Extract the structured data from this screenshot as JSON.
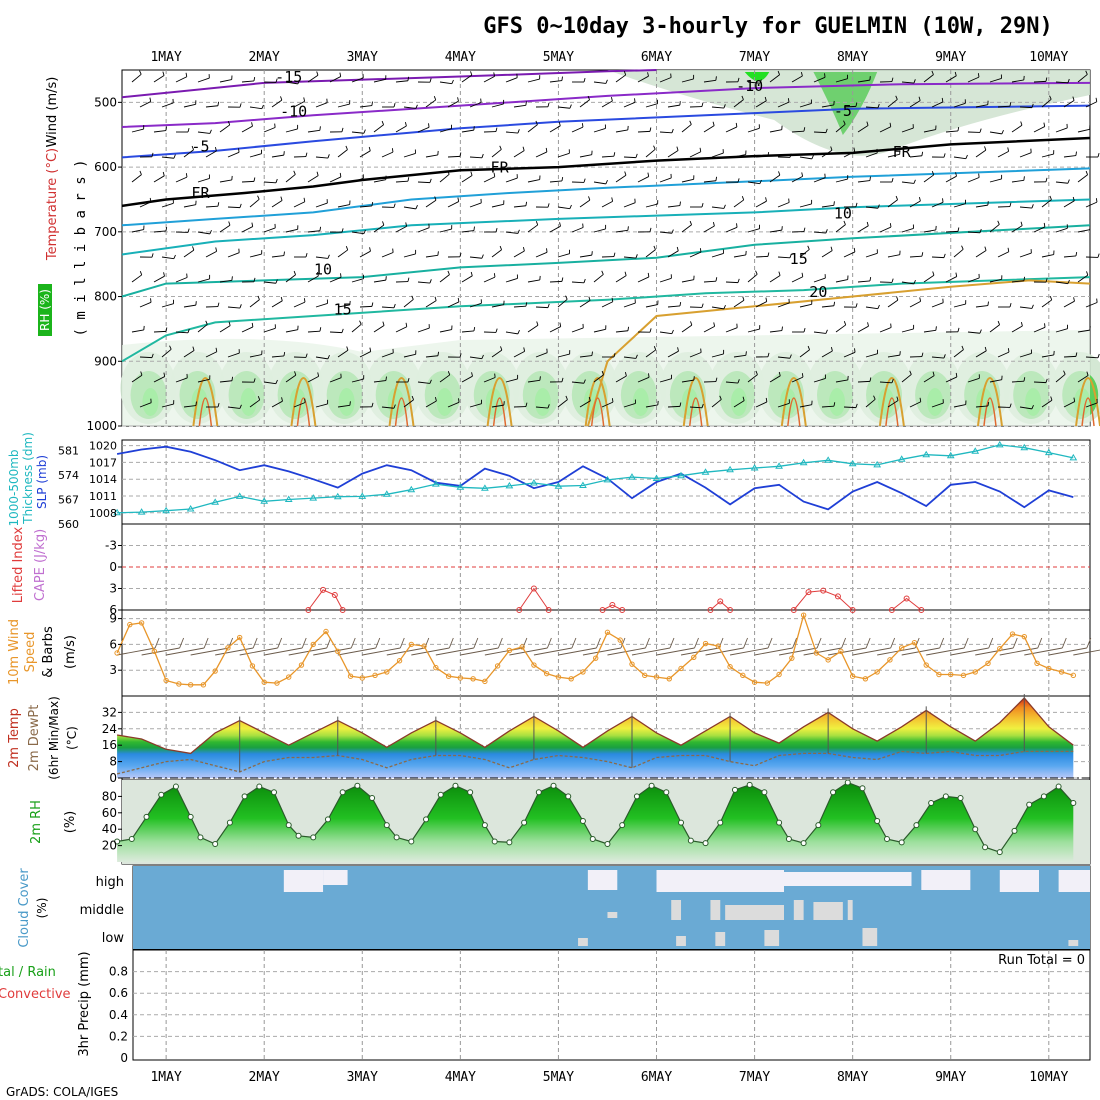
{
  "title": "GFS 0~10day 3-hourly for GUELMIN (10W, 29N)",
  "footer": "GrADS: COLA/IGES",
  "dates": [
    "1MAY",
    "2MAY",
    "3MAY",
    "4MAY",
    "5MAY",
    "6MAY",
    "7MAY",
    "8MAY",
    "9MAY",
    "10MAY"
  ],
  "colors": {
    "slp": "#1f3fd6",
    "thickness": "#20b8c0",
    "lifted": "#e03c3c",
    "wind": "#e8962a",
    "temp_fill": "#f0a030",
    "dewpt": "#8a6a4a",
    "rh_green": "#19b019",
    "cloud": "#6aaad4",
    "cloud_clear": "#f2f0f8",
    "cloud_partial": "#dcdcdc"
  },
  "panels": {
    "profile": {
      "ylabel": "( m i l l i b a r s )",
      "legend_wind": "Wind (m/s)",
      "legend_temp": "Temperature (°C)",
      "legend_rh": "RH (%)",
      "yticks": [
        "500",
        "600",
        "700",
        "800",
        "900",
        "1000"
      ],
      "contour_labels": {
        "t_m15": "-15",
        "t_m10a": "-10",
        "t_m10b": "-10",
        "t_m5a": "-5",
        "t_m5b": "-5",
        "fr1": "FR",
        "fr2": "FR",
        "fr3": "FR",
        "t10a": "10",
        "t10b": "10",
        "t15a": "15",
        "t15b": "15",
        "t20": "20"
      }
    },
    "slp": {
      "label1": "Thickness (dm)",
      "label2": "1000-500mb",
      "label3": "SLP (mb)",
      "yticks_left": [
        "581",
        "574",
        "567",
        "560"
      ],
      "yticks_right": [
        "1020",
        "1017",
        "1014",
        "1011",
        "1008"
      ]
    },
    "stability": {
      "label1": "Lifted Index",
      "label2": "CAPE (J/kg)",
      "yticks": [
        "-3",
        "0",
        "3",
        "6"
      ]
    },
    "wind10m": {
      "label1": "10m Wind",
      "label2": "Speed",
      "label3": "& Barbs",
      "label4": "(m/s)",
      "yticks": [
        "9",
        "6",
        "3"
      ]
    },
    "temp": {
      "label1": "2m Temp",
      "label2": "2m DewPt",
      "label3": "(6hr Min/Max)",
      "label4": "(°C)",
      "yticks": [
        "32",
        "24",
        "16",
        "8",
        "0"
      ]
    },
    "rh": {
      "label1": "2m RH",
      "label2": "(%)",
      "yticks": [
        "80",
        "60",
        "40",
        "20"
      ]
    },
    "cloud": {
      "label1": "Cloud Cover",
      "label2": "(%)",
      "yticks": [
        "high",
        "middle",
        "low"
      ]
    },
    "precip": {
      "label1": "tal / Rain",
      "label2": "Convective",
      "label3": "3hr Precip (mm)",
      "run_total": "Run Total = 0",
      "yticks": [
        "0.8",
        "0.6",
        "0.4",
        "0.2",
        "0"
      ]
    }
  },
  "chart_data": [
    {
      "type": "line",
      "title": "SLP (mb)",
      "x_unit": "day of May",
      "x": [
        0.5,
        0.75,
        1.0,
        1.25,
        1.5,
        1.75,
        2.0,
        2.25,
        2.5,
        2.75,
        3.0,
        3.25,
        3.5,
        3.75,
        4.0,
        4.25,
        4.5,
        4.75,
        5.0,
        5.25,
        5.5,
        5.75,
        6.0,
        6.25,
        6.5,
        6.75,
        7.0,
        7.25,
        7.5,
        7.75,
        8.0,
        8.25,
        8.5,
        8.75,
        9.0,
        9.25,
        9.5,
        9.75,
        10.0,
        10.25
      ],
      "series": [
        {
          "name": "SLP (mb)",
          "values": [
            1018.5,
            1019.3,
            1019.8,
            1018.9,
            1017.4,
            1015.6,
            1016.5,
            1015.4,
            1014.0,
            1012.5,
            1015.0,
            1016.5,
            1015.6,
            1013.4,
            1012.8,
            1015.9,
            1014.6,
            1012.4,
            1013.5,
            1016.3,
            1014.1,
            1010.6,
            1013.5,
            1015.0,
            1012.5,
            1009.5,
            1012.4,
            1013.0,
            1010.0,
            1008.6,
            1011.8,
            1013.5,
            1011.5,
            1009.2,
            1013.0,
            1013.5,
            1011.8,
            1009.0,
            1012.0,
            1010.8
          ]
        },
        {
          "name": "1000-500mb Thickness (dm)",
          "values": [
            563.2,
            563.4,
            563.8,
            564.3,
            566.2,
            567.9,
            566.5,
            567.0,
            567.4,
            567.8,
            567.9,
            568.5,
            569.8,
            571.4,
            570.5,
            570.2,
            570.9,
            571.7,
            570.8,
            571.0,
            572.6,
            573.4,
            573.0,
            573.8,
            574.8,
            575.5,
            576.0,
            576.5,
            577.5,
            578.2,
            577.2,
            576.9,
            578.5,
            579.8,
            579.5,
            580.8,
            582.6,
            581.8,
            580.4,
            578.9
          ]
        }
      ],
      "ylim_slp": [
        1006,
        1021
      ],
      "ylim_thickness": [
        560,
        584
      ]
    },
    {
      "type": "line",
      "title": "Lifted Index / CAPE",
      "ylim": [
        6,
        -6
      ],
      "series": [
        {
          "name": "Lifted Index",
          "x": [
            2.45,
            2.6,
            2.72,
            2.8
          ],
          "values": [
            6.0,
            3.2,
            3.9,
            6.0
          ]
        },
        {
          "name": "Lifted Index",
          "x": [
            4.6,
            4.75,
            4.9
          ],
          "values": [
            6.0,
            3.0,
            6.0
          ]
        },
        {
          "name": "Lifted Index",
          "x": [
            5.45,
            5.55,
            5.65
          ],
          "values": [
            6.0,
            5.3,
            6.0
          ]
        },
        {
          "name": "Lifted Index",
          "x": [
            6.55,
            6.65,
            6.75
          ],
          "values": [
            6.0,
            4.8,
            6.0
          ]
        },
        {
          "name": "Lifted Index",
          "x": [
            7.4,
            7.55,
            7.7,
            7.85,
            8.0
          ],
          "values": [
            6.0,
            3.5,
            3.3,
            4.1,
            6.0
          ]
        },
        {
          "name": "Lifted Index",
          "x": [
            8.4,
            8.55,
            8.7
          ],
          "values": [
            6.0,
            4.4,
            6.0
          ]
        }
      ]
    },
    {
      "type": "line",
      "title": "10m Wind Speed (m/s)",
      "x": [
        0.5,
        0.63,
        0.75,
        0.88,
        1.0,
        1.13,
        1.25,
        1.38,
        1.5,
        1.63,
        1.75,
        1.88,
        2.0,
        2.13,
        2.25,
        2.38,
        2.5,
        2.63,
        2.75,
        2.88,
        3.0,
        3.13,
        3.25,
        3.38,
        3.5,
        3.63,
        3.75,
        3.88,
        4.0,
        4.13,
        4.25,
        4.38,
        4.5,
        4.63,
        4.75,
        4.88,
        5.0,
        5.13,
        5.25,
        5.38,
        5.5,
        5.63,
        5.75,
        5.88,
        6.0,
        6.13,
        6.25,
        6.38,
        6.5,
        6.63,
        6.75,
        6.88,
        7.0,
        7.13,
        7.25,
        7.38,
        7.5,
        7.63,
        7.75,
        7.88,
        8.0,
        8.13,
        8.25,
        8.38,
        8.5,
        8.63,
        8.75,
        8.88,
        9.0,
        9.13,
        9.25,
        9.38,
        9.5,
        9.63,
        9.75,
        9.88,
        10.0,
        10.13,
        10.25
      ],
      "series": [
        {
          "name": "Speed",
          "values": [
            5.0,
            8.3,
            8.5,
            5.2,
            1.8,
            1.4,
            1.3,
            1.3,
            2.9,
            5.6,
            6.8,
            3.5,
            1.6,
            1.5,
            2.2,
            3.6,
            6.0,
            7.5,
            5.2,
            2.3,
            2.1,
            2.4,
            2.8,
            4.1,
            6.0,
            5.8,
            3.3,
            2.3,
            2.1,
            2.0,
            1.7,
            3.5,
            5.3,
            5.7,
            3.6,
            2.6,
            2.2,
            2.0,
            2.8,
            4.4,
            7.4,
            6.5,
            3.7,
            2.4,
            2.2,
            2.0,
            3.2,
            4.5,
            6.1,
            5.8,
            3.4,
            2.4,
            1.6,
            1.5,
            2.5,
            4.4,
            9.4,
            5.0,
            4.2,
            5.2,
            2.3,
            2.0,
            2.8,
            4.2,
            5.6,
            6.2,
            3.6,
            2.5,
            2.5,
            2.4,
            2.8,
            3.8,
            5.5,
            7.2,
            6.9,
            3.8,
            3.2,
            2.8,
            2.4
          ]
        }
      ],
      "ylim": [
        0,
        10
      ]
    },
    {
      "type": "area",
      "title": "2m Temp / 2m DewPt (°C)",
      "x": [
        0.5,
        0.75,
        1.0,
        1.25,
        1.5,
        1.75,
        2.0,
        2.25,
        2.5,
        2.75,
        3.0,
        3.25,
        3.5,
        3.75,
        4.0,
        4.25,
        4.5,
        4.75,
        5.0,
        5.25,
        5.5,
        5.75,
        6.0,
        6.25,
        6.5,
        6.75,
        7.0,
        7.25,
        7.5,
        7.75,
        8.0,
        8.25,
        8.5,
        8.75,
        9.0,
        9.25,
        9.5,
        9.75,
        10.0,
        10.25
      ],
      "series": [
        {
          "name": "2m Temp",
          "values": [
            21,
            19,
            14,
            12,
            22,
            28,
            22,
            16,
            22,
            28,
            22,
            15,
            22,
            28,
            22,
            15,
            23,
            30,
            23,
            15,
            23,
            30,
            22,
            16,
            23,
            30,
            22,
            17,
            25,
            32,
            24,
            18,
            25,
            33,
            25,
            18,
            27,
            39,
            25,
            16
          ]
        },
        {
          "name": "2m DewPt",
          "values": [
            2,
            5,
            8,
            9,
            6,
            3,
            8,
            10,
            10,
            11,
            9,
            5,
            9,
            11,
            11,
            9,
            5,
            9,
            11,
            10,
            8,
            5,
            10,
            11,
            11,
            8,
            6,
            11,
            12,
            12,
            10,
            9,
            13,
            12,
            13,
            11,
            11,
            13,
            13,
            13
          ]
        }
      ],
      "ylim": [
        0,
        40
      ]
    },
    {
      "type": "area",
      "title": "2m RH (%)",
      "x": [
        0.5,
        0.65,
        0.8,
        0.95,
        1.1,
        1.25,
        1.35,
        1.5,
        1.65,
        1.8,
        1.95,
        2.1,
        2.25,
        2.35,
        2.5,
        2.65,
        2.8,
        2.95,
        3.1,
        3.25,
        3.35,
        3.5,
        3.65,
        3.8,
        3.95,
        4.1,
        4.25,
        4.35,
        4.5,
        4.65,
        4.8,
        4.95,
        5.1,
        5.25,
        5.35,
        5.5,
        5.65,
        5.8,
        5.95,
        6.1,
        6.25,
        6.35,
        6.5,
        6.65,
        6.8,
        6.95,
        7.1,
        7.25,
        7.35,
        7.5,
        7.65,
        7.8,
        7.95,
        8.1,
        8.25,
        8.35,
        8.5,
        8.65,
        8.8,
        8.95,
        9.1,
        9.25,
        9.35,
        9.5,
        9.65,
        9.8,
        9.95,
        10.1,
        10.25
      ],
      "series": [
        {
          "name": "2m RH",
          "values": [
            25,
            28,
            55,
            82,
            92,
            55,
            30,
            22,
            48,
            80,
            92,
            85,
            45,
            32,
            30,
            52,
            85,
            93,
            78,
            45,
            30,
            25,
            52,
            82,
            93,
            85,
            45,
            25,
            24,
            48,
            85,
            93,
            80,
            50,
            28,
            22,
            45,
            80,
            93,
            85,
            48,
            26,
            23,
            48,
            88,
            94,
            85,
            48,
            28,
            23,
            45,
            85,
            97,
            90,
            50,
            28,
            24,
            45,
            72,
            80,
            78,
            40,
            18,
            12,
            38,
            70,
            80,
            92,
            72
          ]
        }
      ],
      "ylim": [
        0,
        100
      ]
    },
    {
      "type": "bar",
      "title": "3hr Precip (mm)",
      "values": [],
      "ylim": [
        0,
        1
      ]
    }
  ]
}
